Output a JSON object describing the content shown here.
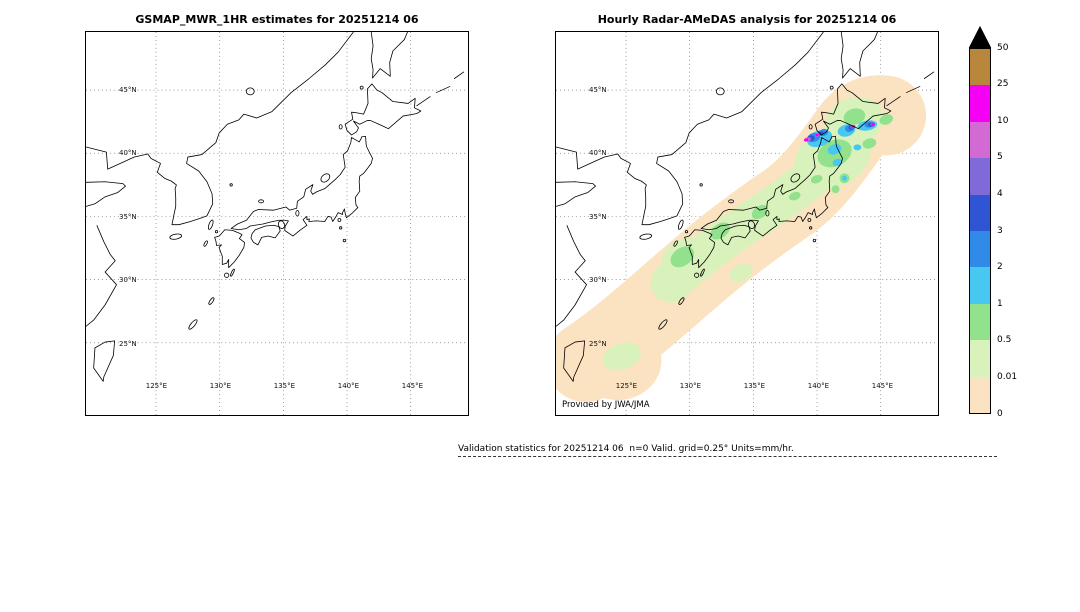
{
  "window": {
    "background": "#ffffff"
  },
  "panels": {
    "left": {
      "title": "GSMAP_MWR_1HR estimates for 20251214 06"
    },
    "right": {
      "title": "Hourly Radar-AMeDAS analysis for 20251214 06",
      "credit": "Provided by JWA/JMA"
    },
    "lat_ticks": [
      "45°N",
      "40°N",
      "35°N",
      "30°N",
      "25°N"
    ],
    "lon_ticks": [
      "125°E",
      "130°E",
      "135°E",
      "140°E",
      "145°E"
    ]
  },
  "colorbar": {
    "overflow_color": "#000000",
    "tick_labels": [
      "50",
      "25",
      "10",
      "5",
      "4",
      "3",
      "2",
      "1",
      "0.5",
      "0.01",
      "0"
    ],
    "segments": [
      {
        "range": "25-50",
        "color": "#b8873c"
      },
      {
        "range": "10-25",
        "color": "#f500f5"
      },
      {
        "range": "5-10",
        "color": "#d36ad3"
      },
      {
        "range": "4-5",
        "color": "#7f6ad8"
      },
      {
        "range": "3-4",
        "color": "#2f55d4"
      },
      {
        "range": "2-3",
        "color": "#2f8ae8"
      },
      {
        "range": "1-2",
        "color": "#46c8f0"
      },
      {
        "range": "0.5-1",
        "color": "#92e18c"
      },
      {
        "range": "0.01-0.5",
        "color": "#d9f2bb"
      },
      {
        "range": "0-0.01",
        "color": "#fbe2c0"
      }
    ]
  },
  "footer": {
    "text": "Validation statistics for 20251214 06  n=0 Valid. grid=0.25° Units=mm/hr."
  },
  "chart_data": {
    "type": "heatmap",
    "subtype": "geographic precipitation map comparison over Japan",
    "panels": [
      {
        "title": "GSMAP_MWR_1HR estimates for 20251214 06",
        "data_shown": "no precipitation field plotted (empty map, coastlines and grid only)"
      },
      {
        "title": "Hourly Radar-AMeDAS analysis for 20251214 06",
        "data_shown": "precipitation along the archipelago from Okinawa to Hokkaido: broad 0-0.5 mm/hr halo, 0.5-2 mm/hr over Kyushu/Shikoku/central Honshu, 2-5 mm/hr over northern Honshu and southern Hokkaido, small 5-25+ mm/hr cells near the Tsugaru Strait and eastern Hokkaido",
        "annotation": "Provided by JWA/JMA"
      }
    ],
    "x_ticks": [
      "125°E",
      "130°E",
      "135°E",
      "140°E",
      "145°E"
    ],
    "y_ticks": [
      "45°N",
      "40°N",
      "35°N",
      "30°N",
      "25°N"
    ],
    "colorbar_levels_mm_hr": [
      0,
      0.01,
      0.5,
      1,
      2,
      3,
      4,
      5,
      10,
      25,
      50
    ],
    "colorbar_colors_low_to_high": [
      "#fbe2c0",
      "#d9f2bb",
      "#92e18c",
      "#46c8f0",
      "#2f8ae8",
      "#2f55d4",
      "#7f6ad8",
      "#d36ad3",
      "#f500f5",
      "#b8873c",
      "#000000"
    ],
    "overflow_triangle": "black, values above 50",
    "units": "mm/hr",
    "grid_resolution": "0.25°",
    "sample_count": "n=0",
    "grid": "dotted lat/lon graticule every 5 degrees",
    "legend_position": "right vertical colorbar"
  }
}
